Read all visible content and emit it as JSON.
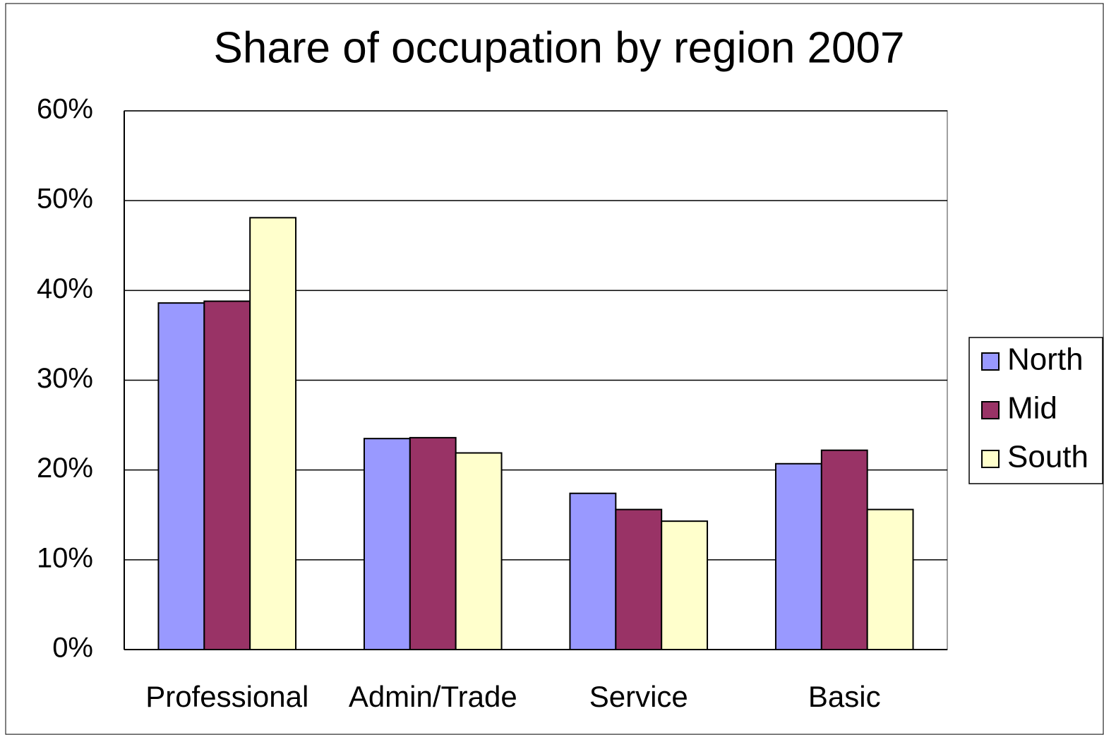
{
  "chart_data": {
    "type": "bar",
    "title": "Share of occupation by region 2007",
    "categories": [
      "Professional",
      "Admin/Trade",
      "Service",
      "Basic"
    ],
    "series": [
      {
        "name": "North",
        "color": "#9999ff",
        "values": [
          38.6,
          23.5,
          17.4,
          20.7
        ]
      },
      {
        "name": "Mid",
        "color": "#993366",
        "values": [
          38.8,
          23.6,
          15.6,
          22.2
        ]
      },
      {
        "name": "South",
        "color": "#ffffcc",
        "values": [
          48.1,
          21.9,
          14.3,
          15.6
        ]
      }
    ],
    "ylim": [
      0,
      60
    ],
    "yticks": [
      {
        "value": 0,
        "label": "0%"
      },
      {
        "value": 10,
        "label": "10%"
      },
      {
        "value": 20,
        "label": "20%"
      },
      {
        "value": 30,
        "label": "30%"
      },
      {
        "value": 40,
        "label": "40%"
      },
      {
        "value": 50,
        "label": "50%"
      },
      {
        "value": 60,
        "label": "60%"
      }
    ],
    "grid": true,
    "legend": "right"
  }
}
